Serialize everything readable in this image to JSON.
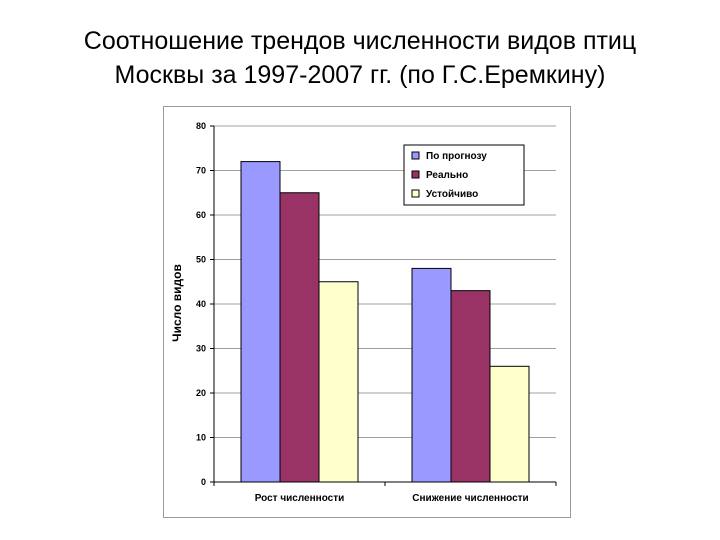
{
  "slide": {
    "title_line1": "Соотношение трендов численности видов птиц",
    "title_line2": "Москвы за 1997-2007 гг. (по Г.С.Еремкину)"
  },
  "chart_data": {
    "type": "bar",
    "title": "",
    "xlabel": "",
    "ylabel": "Число видов",
    "ylim": [
      0,
      80
    ],
    "yticks": [
      0,
      10,
      20,
      30,
      40,
      50,
      60,
      70,
      80
    ],
    "grid": true,
    "legend_position": "top-right",
    "categories": [
      "Рост численности",
      "Снижение численности"
    ],
    "series": [
      {
        "name": "По прогнозу",
        "color": "#9999ff",
        "values": [
          72,
          48
        ]
      },
      {
        "name": "Реально",
        "color": "#993366",
        "values": [
          65,
          43
        ]
      },
      {
        "name": "Устойчиво",
        "color": "#ffffcc",
        "values": [
          45,
          26
        ]
      }
    ]
  }
}
